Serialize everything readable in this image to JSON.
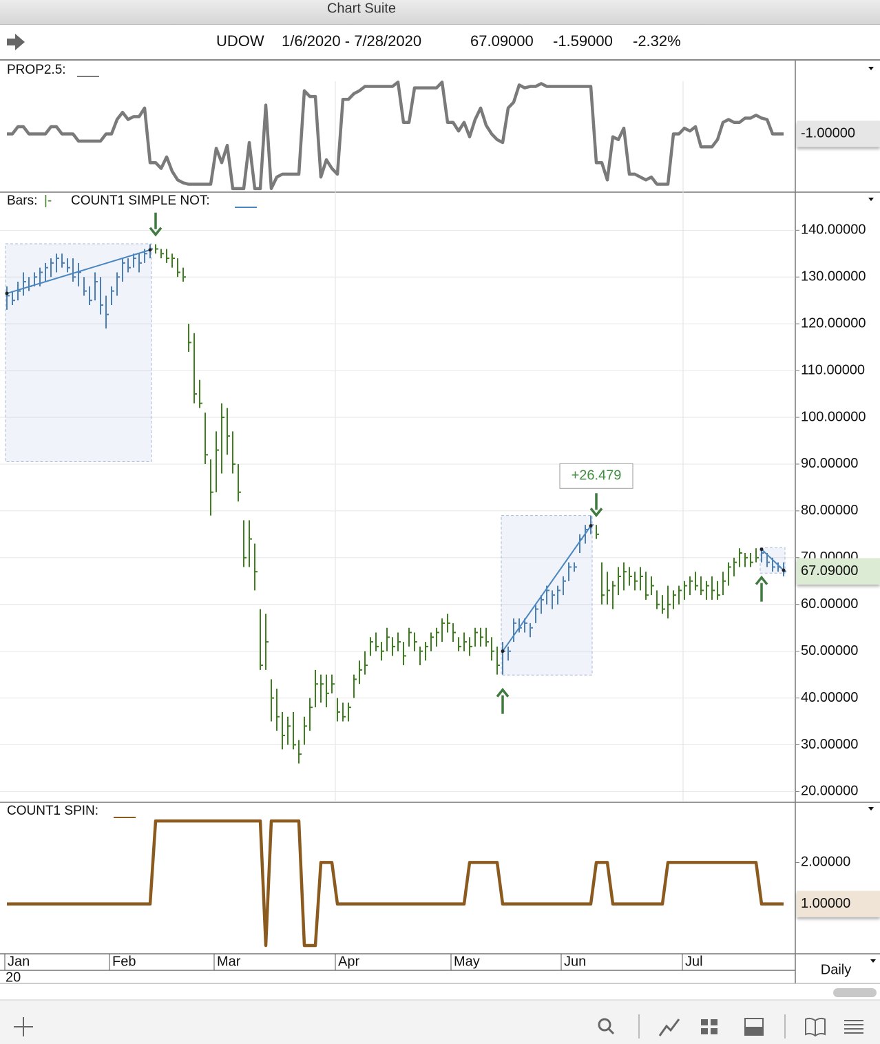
{
  "window_title": "Chart Suite",
  "header": {
    "symbol": "UDOW",
    "date_range": "1/6/2020 - 7/28/2020",
    "last": "67.09000",
    "change": "-1.59000",
    "change_pct": "-2.32%"
  },
  "period": "Daily",
  "chart_data": [
    {
      "type": "line",
      "name": "PROP2.5:",
      "color": "#7a7a7a",
      "ylim": [
        -3,
        1.5
      ],
      "last_value_label": "-1.00000",
      "values": [
        -1,
        -1,
        -0.75,
        -0.75,
        -1,
        -1,
        -1,
        -1,
        -0.75,
        -0.75,
        -1,
        -1,
        -1,
        -1.25,
        -1.25,
        -1.25,
        -1.25,
        -1.25,
        -1,
        -1,
        -0.5,
        -0.25,
        -0.5,
        -0.4,
        -0.4,
        -0.1,
        -2,
        -2,
        -2.2,
        -1.8,
        -2.3,
        -2.6,
        -2.7,
        -2.75,
        -2.75,
        -2.75,
        -2.75,
        -2.75,
        -1.5,
        -2,
        -1.4,
        -2.9,
        -2.9,
        -2.9,
        -1.3,
        -2.9,
        -2.9,
        0,
        -2.9,
        -2.5,
        -2.4,
        -2.4,
        -2.4,
        -2.4,
        0.5,
        0.3,
        0.3,
        -2.5,
        -1.9,
        -2.2,
        -2.4,
        0.2,
        0.2,
        0.4,
        0.5,
        0.65,
        0.65,
        0.65,
        0.65,
        0.65,
        0.65,
        0.8,
        -0.6,
        -0.6,
        0.6,
        0.6,
        0.6,
        0.6,
        0.6,
        0.8,
        -0.6,
        -0.6,
        -0.9,
        -0.6,
        -1.1,
        -0.5,
        -0.1,
        -0.7,
        -1,
        -1.2,
        -1.3,
        -0.1,
        0.1,
        0.7,
        0.6,
        0.65,
        0.65,
        0.75,
        0.65,
        0.65,
        0.65,
        0.65,
        0.65,
        0.65,
        0.65,
        0.65,
        0.65,
        -2,
        -2,
        -2.6,
        -1.1,
        -1.2,
        -0.8,
        -2.4,
        -2.4,
        -2.5,
        -2.6,
        -2.5,
        -2.75,
        -2.75,
        -2.75,
        -1,
        -1,
        -0.8,
        -0.9,
        -0.75,
        -1.45,
        -1.45,
        -1.45,
        -1.2,
        -0.6,
        -0.5,
        -0.6,
        -0.6,
        -0.45,
        -0.45,
        -0.35,
        -0.45,
        -0.5,
        -1,
        -1,
        -1
      ]
    },
    {
      "type": "ohlc",
      "bars_label": "Bars:",
      "bars_style": "|-",
      "name": "COUNT1 SIMPLE NOT:",
      "color": "#3d7f1f",
      "region_color": "#4a7fb5",
      "legend_color": "#4a86c0",
      "ylim": [
        18,
        148
      ],
      "grid": true,
      "yticks": [
        {
          "value": 20,
          "label": "20.00000"
        },
        {
          "value": 30,
          "label": "30.00000"
        },
        {
          "value": 40,
          "label": "40.00000"
        },
        {
          "value": 50,
          "label": "50.00000"
        },
        {
          "value": 60,
          "label": "60.00000"
        },
        {
          "value": 70,
          "label": "70.00000"
        },
        {
          "value": 80,
          "label": "80.00000"
        },
        {
          "value": 90,
          "label": "90.00000"
        },
        {
          "value": 100,
          "label": "100.00000"
        },
        {
          "value": 110,
          "label": "110.00000"
        },
        {
          "value": 120,
          "label": "120.00000"
        },
        {
          "value": 130,
          "label": "130.00000"
        },
        {
          "value": 140,
          "label": "140.00000"
        }
      ],
      "last_value_label": "67.09000",
      "regions": [
        {
          "start": 0,
          "end": 26,
          "top": 137.1,
          "bottom": 90.5
        },
        {
          "start": 90,
          "end": 106,
          "top": 79,
          "bottom": 44.9
        },
        {
          "start": 137,
          "end": 141,
          "top": 72.1,
          "bottom": 66.7
        }
      ],
      "trend_lines": [
        {
          "x": [
            0,
            26
          ],
          "y": [
            126.5,
            135.8
          ]
        },
        {
          "x": [
            90,
            106
          ],
          "y": [
            50,
            76.8
          ]
        },
        {
          "x": [
            137,
            141
          ],
          "y": [
            71.8,
            67.3
          ]
        }
      ],
      "arrows": [
        {
          "index": 27,
          "dir": "down"
        },
        {
          "index": 90,
          "dir": "up"
        },
        {
          "index": 107,
          "dir": "down"
        },
        {
          "index": 137,
          "dir": "up"
        }
      ],
      "annotation": {
        "text": "+26.479",
        "index": 107
      },
      "values": [
        [
          128,
          123,
          126
        ],
        [
          127,
          124,
          125
        ],
        [
          129,
          125,
          127
        ],
        [
          131,
          126,
          129
        ],
        [
          130,
          127,
          128
        ],
        [
          131,
          128,
          130
        ],
        [
          132,
          128,
          131
        ],
        [
          133,
          129,
          132
        ],
        [
          134,
          130,
          133
        ],
        [
          135,
          131,
          134
        ],
        [
          135,
          132,
          133
        ],
        [
          134,
          131,
          132
        ],
        [
          134,
          129,
          130
        ],
        [
          133,
          128,
          131
        ],
        [
          130,
          126,
          127
        ],
        [
          128,
          124,
          125
        ],
        [
          131,
          125,
          129
        ],
        [
          130,
          122,
          124
        ],
        [
          126,
          119,
          122
        ],
        [
          128,
          124,
          127
        ],
        [
          131,
          126,
          130
        ],
        [
          134,
          129,
          133
        ],
        [
          134,
          131,
          132
        ],
        [
          135,
          132,
          134
        ],
        [
          135,
          131,
          133
        ],
        [
          136,
          133,
          135
        ],
        [
          137,
          134,
          136
        ],
        [
          137,
          135,
          136
        ],
        [
          136,
          134,
          135
        ],
        [
          136,
          133,
          134
        ],
        [
          135,
          132,
          134
        ],
        [
          134,
          130,
          131
        ],
        [
          132,
          129,
          130
        ],
        [
          120,
          114,
          116
        ],
        [
          118,
          103,
          105
        ],
        [
          108,
          102,
          103
        ],
        [
          101,
          90,
          92
        ],
        [
          91,
          79,
          84
        ],
        [
          97,
          84,
          93
        ],
        [
          103,
          88,
          100
        ],
        [
          102,
          92,
          96
        ],
        [
          97,
          88,
          90
        ],
        [
          90,
          82,
          84
        ],
        [
          78,
          68,
          70
        ],
        [
          78,
          68,
          74
        ],
        [
          73,
          63,
          67
        ],
        [
          59,
          46,
          47
        ],
        [
          58,
          46,
          52
        ],
        [
          44,
          35,
          40
        ],
        [
          42,
          33,
          36
        ],
        [
          37,
          29,
          32
        ],
        [
          36,
          30,
          34
        ],
        [
          37,
          29,
          30
        ],
        [
          31,
          26,
          28
        ],
        [
          36,
          30,
          34
        ],
        [
          40,
          33,
          38
        ],
        [
          46,
          38,
          43
        ],
        [
          45,
          39,
          43
        ],
        [
          45,
          38,
          41
        ],
        [
          45,
          41,
          43
        ],
        [
          40,
          35,
          37
        ],
        [
          39,
          35,
          36
        ],
        [
          39,
          35,
          38
        ],
        [
          45,
          40,
          44
        ],
        [
          48,
          43,
          46
        ],
        [
          50,
          45,
          47
        ],
        [
          53,
          49,
          52
        ],
        [
          54,
          50,
          51
        ],
        [
          52,
          48,
          50
        ],
        [
          55,
          50,
          53
        ],
        [
          53,
          49,
          51
        ],
        [
          54,
          50,
          52
        ],
        [
          52,
          47,
          49
        ],
        [
          55,
          51,
          54
        ],
        [
          54,
          50,
          52
        ],
        [
          51,
          47,
          50
        ],
        [
          52,
          48,
          51
        ],
        [
          54,
          50,
          53
        ],
        [
          55,
          51,
          54
        ],
        [
          57,
          52,
          56
        ],
        [
          58,
          54,
          56
        ],
        [
          56,
          52,
          54
        ],
        [
          53,
          50,
          51
        ],
        [
          54,
          50,
          52
        ],
        [
          53,
          49,
          51
        ],
        [
          55,
          51,
          54
        ],
        [
          55,
          51,
          53
        ],
        [
          55,
          51,
          52
        ],
        [
          53,
          48,
          50
        ],
        [
          51,
          45,
          47
        ],
        [
          52,
          45,
          50
        ],
        [
          51,
          48,
          50
        ],
        [
          57,
          52,
          56
        ],
        [
          57,
          54,
          55
        ],
        [
          57,
          54,
          56
        ],
        [
          56,
          53,
          55
        ],
        [
          60,
          56,
          59
        ],
        [
          62,
          58,
          61
        ],
        [
          64,
          60,
          63
        ],
        [
          63,
          59,
          62
        ],
        [
          64,
          60,
          63
        ],
        [
          66,
          62,
          65
        ],
        [
          69,
          65,
          68
        ],
        [
          69,
          67,
          68
        ],
        [
          75,
          71,
          74
        ],
        [
          77,
          73,
          76
        ],
        [
          79,
          75,
          77
        ],
        [
          77,
          74,
          75
        ],
        [
          69,
          60,
          62
        ],
        [
          67,
          60,
          63
        ],
        [
          65,
          59,
          64
        ],
        [
          68,
          62,
          66
        ],
        [
          69,
          63,
          67
        ],
        [
          68,
          64,
          66
        ],
        [
          67,
          63,
          65
        ],
        [
          68,
          63,
          66
        ],
        [
          67,
          61,
          62
        ],
        [
          66,
          62,
          64
        ],
        [
          63,
          59,
          60
        ],
        [
          62,
          58,
          59
        ],
        [
          64,
          57,
          60
        ],
        [
          63,
          59,
          62
        ],
        [
          64,
          60,
          63
        ],
        [
          65,
          61,
          64
        ],
        [
          66,
          62,
          65
        ],
        [
          67,
          63,
          64
        ],
        [
          66,
          62,
          63
        ],
        [
          65,
          61,
          64
        ],
        [
          66,
          61,
          63
        ],
        [
          65,
          61,
          62
        ],
        [
          67,
          62,
          65
        ],
        [
          69,
          64,
          68
        ],
        [
          70,
          66,
          69
        ],
        [
          72,
          68,
          71
        ],
        [
          71,
          68,
          70
        ],
        [
          71,
          68,
          69
        ],
        [
          72,
          69,
          70
        ],
        [
          72,
          69,
          71
        ],
        [
          71,
          68,
          69
        ],
        [
          70,
          67,
          68
        ],
        [
          69,
          67,
          68
        ],
        [
          69,
          66,
          67.09
        ]
      ]
    },
    {
      "type": "line",
      "name": "COUNT1 SPIN:",
      "color": "#8b5a1e",
      "ylim": [
        -0.2,
        3.45
      ],
      "yticks": [
        {
          "value": 2,
          "label": "2.00000"
        }
      ],
      "last_value_label": "1.00000",
      "xticks": [
        {
          "value": 0,
          "label": "Jan"
        },
        {
          "value": 19,
          "label": "Feb"
        },
        {
          "value": 38,
          "label": "Mar"
        },
        {
          "value": 60,
          "label": "Apr"
        },
        {
          "value": 81,
          "label": "May"
        },
        {
          "value": 101,
          "label": "Jun"
        },
        {
          "value": 123,
          "label": "Jul"
        }
      ],
      "year_label": "20",
      "values": [
        1,
        1,
        1,
        1,
        1,
        1,
        1,
        1,
        1,
        1,
        1,
        1,
        1,
        1,
        1,
        1,
        1,
        1,
        1,
        1,
        1,
        1,
        1,
        1,
        1,
        1,
        1,
        3,
        3,
        3,
        3,
        3,
        3,
        3,
        3,
        3,
        3,
        3,
        3,
        3,
        3,
        3,
        3,
        3,
        3,
        3,
        3,
        0,
        3,
        3,
        3,
        3,
        3,
        3,
        0,
        0,
        0,
        2,
        2,
        2,
        1,
        1,
        1,
        1,
        1,
        1,
        1,
        1,
        1,
        1,
        1,
        1,
        1,
        1,
        1,
        1,
        1,
        1,
        1,
        1,
        1,
        1,
        1,
        1,
        2,
        2,
        2,
        2,
        2,
        2,
        1,
        1,
        1,
        1,
        1,
        1,
        1,
        1,
        1,
        1,
        1,
        1,
        1,
        1,
        1,
        1,
        1,
        2,
        2,
        2,
        1,
        1,
        1,
        1,
        1,
        1,
        1,
        1,
        1,
        1,
        2,
        2,
        2,
        2,
        2,
        2,
        2,
        2,
        2,
        2,
        2,
        2,
        2,
        2,
        2,
        2,
        2,
        1,
        1,
        1,
        1,
        1
      ]
    }
  ]
}
